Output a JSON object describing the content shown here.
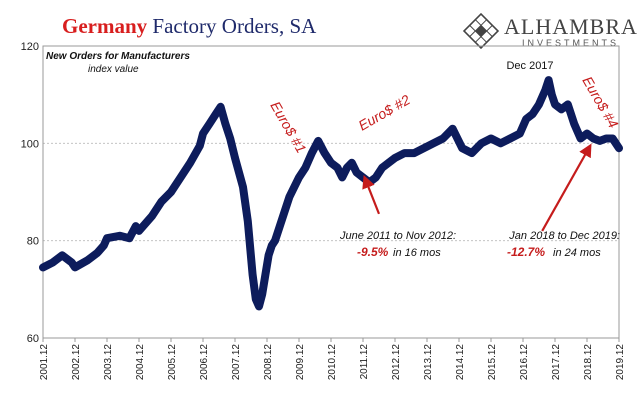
{
  "header": {
    "title_country": "Germany",
    "title_rest": "Factory Orders, SA"
  },
  "logo": {
    "name": "ALHAMBRA",
    "sub": "INVESTMENTS",
    "icon": "diamond-lattice-icon"
  },
  "chart_data": {
    "type": "line",
    "title": "Germany Factory Orders, SA",
    "subtitle": "New Orders for Manufacturers",
    "ylabel": "index value",
    "xlabel": "",
    "ylim": [
      60,
      120
    ],
    "yticks": [
      60,
      80,
      100,
      120
    ],
    "xlim": [
      2001.9,
      2019.9
    ],
    "xtick_labels": [
      "2001.12",
      "2002.12",
      "2003.12",
      "2004.12",
      "2005.12",
      "2006.12",
      "2007.12",
      "2008.12",
      "2009.12",
      "2010.12",
      "2011.12",
      "2012.12",
      "2013.12",
      "2014.12",
      "2015.12",
      "2016.12",
      "2017.12",
      "2018.12",
      "2019.12"
    ],
    "grid": true,
    "line_color": "#0d1c5c",
    "series": [
      {
        "name": "",
        "x": [
          2001.9,
          2002.2,
          2002.5,
          2002.8,
          2002.9,
          2003.3,
          2003.6,
          2003.8,
          2003.9,
          2004.3,
          2004.6,
          2004.8,
          2004.9,
          2005.3,
          2005.6,
          2005.9,
          2006.2,
          2006.5,
          2006.8,
          2006.9,
          2007.1,
          2007.3,
          2007.45,
          2007.6,
          2007.75,
          2007.9,
          2008.15,
          2008.3,
          2008.45,
          2008.55,
          2008.65,
          2008.75,
          2008.85,
          2008.95,
          2009.05,
          2009.15,
          2009.3,
          2009.45,
          2009.6,
          2009.75,
          2009.9,
          2010.1,
          2010.3,
          2010.5,
          2010.7,
          2010.9,
          2011.1,
          2011.25,
          2011.4,
          2011.55,
          2011.7,
          2011.9,
          2012.1,
          2012.3,
          2012.5,
          2012.7,
          2012.9,
          2013.2,
          2013.5,
          2013.8,
          2014.1,
          2014.4,
          2014.7,
          2015.0,
          2015.3,
          2015.6,
          2015.9,
          2016.2,
          2016.5,
          2016.8,
          2017.0,
          2017.2,
          2017.4,
          2017.6,
          2017.7,
          2017.8,
          2017.9,
          2018.1,
          2018.3,
          2018.5,
          2018.7,
          2018.9,
          2019.1,
          2019.3,
          2019.5,
          2019.7,
          2019.9
        ],
        "y": [
          74.5,
          75.5,
          77,
          75.5,
          74.5,
          76,
          77.5,
          79,
          80.5,
          81,
          80.5,
          83,
          82,
          85,
          88,
          90,
          93,
          96,
          99.5,
          102,
          104,
          106,
          107.5,
          104,
          101,
          97,
          91,
          84,
          73,
          68,
          66.5,
          69,
          73,
          77,
          79,
          80,
          83,
          86,
          89,
          91,
          93,
          95,
          98,
          100.5,
          98,
          96,
          95,
          93,
          95,
          96,
          94,
          93,
          92,
          93,
          95,
          96,
          97,
          98,
          98,
          99,
          100,
          101,
          103,
          99,
          98,
          100,
          101,
          100,
          101,
          102,
          105,
          106,
          108,
          111,
          113,
          110,
          108,
          107,
          108,
          104,
          101,
          102,
          101,
          100.5,
          101,
          101,
          99
        ]
      }
    ],
    "annotations": [
      {
        "text": "Euro$ #1",
        "color": "#c51c1c",
        "rotation": 60
      },
      {
        "text": "Euro$ #2",
        "color": "#c51c1c",
        "rotation": -30
      },
      {
        "text": "Euro$ #4",
        "color": "#c51c1c",
        "rotation": 60
      },
      {
        "text": "Dec 2017",
        "color": "#111111"
      },
      {
        "text": "June 2011 to Nov 2012:",
        "color": "#111111"
      },
      {
        "text": "-9.5%",
        "color": "#c51c1c"
      },
      {
        "text": "in 16 mos",
        "color": "#111111"
      },
      {
        "text": "Jan 2018 to Dec 2019:",
        "color": "#111111"
      },
      {
        "text": "-12.7%",
        "color": "#c51c1c"
      },
      {
        "text": "in 24 mos",
        "color": "#111111"
      }
    ],
    "arrows": [
      {
        "from_x": 2012.4,
        "from_y": 85.5,
        "to_x": 2011.95,
        "to_y": 93
      },
      {
        "from_x": 2017.5,
        "from_y": 82,
        "to_x": 2019.0,
        "to_y": 99.5
      }
    ],
    "arrow_color": "#c51c1c"
  }
}
